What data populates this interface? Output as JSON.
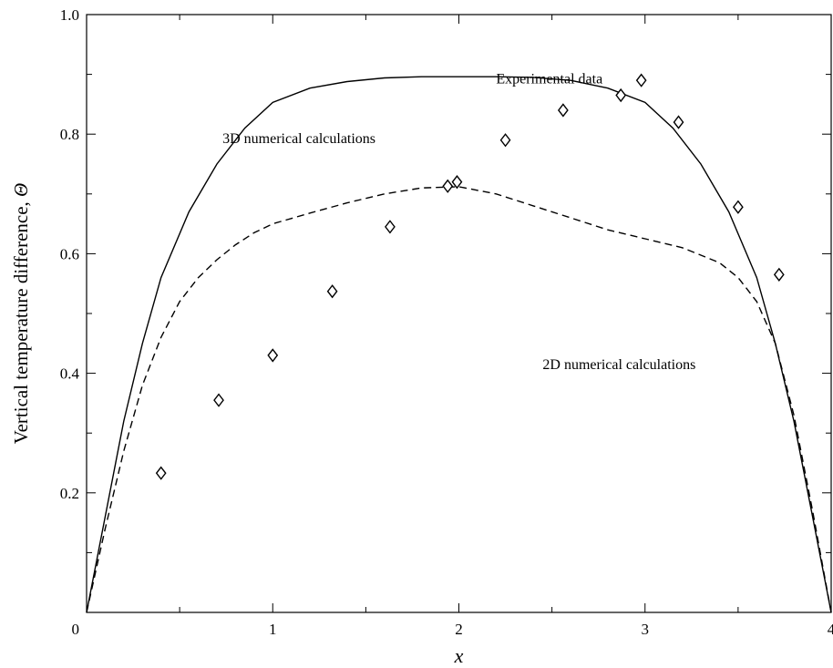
{
  "chart_data": {
    "type": "line",
    "xlabel": "x",
    "ylabel": "Vertical temperature difference, ",
    "ylabel_symbol": "Θ",
    "xlim": [
      0,
      4
    ],
    "ylim": [
      0,
      1.0
    ],
    "x_ticks": [
      0,
      1,
      2,
      3,
      4
    ],
    "x_tick_labels": [
      "0",
      "1",
      "2",
      "3",
      "4"
    ],
    "x_minor_ticks": [
      0.5,
      1.5,
      2.5,
      3.5
    ],
    "y_ticks": [
      0.2,
      0.4,
      0.6,
      0.8,
      1.0
    ],
    "y_tick_labels": [
      "0.2",
      "0.4",
      "0.6",
      "0.8",
      "1.0"
    ],
    "y_minor_ticks": [
      0.1,
      0.3,
      0.5,
      0.7,
      0.9
    ],
    "origin_label": "0",
    "grid": false,
    "series": [
      {
        "name": "3D numerical calculations",
        "style": "solid",
        "color": "#000000",
        "x": [
          0,
          0.1,
          0.2,
          0.3,
          0.4,
          0.55,
          0.7,
          0.85,
          1.0,
          1.2,
          1.4,
          1.6,
          1.8,
          2.0,
          2.2,
          2.4,
          2.6,
          2.8,
          3.0,
          3.15,
          3.3,
          3.45,
          3.6,
          3.7,
          3.8,
          3.9,
          4.0
        ],
        "y": [
          0,
          0.16,
          0.32,
          0.45,
          0.56,
          0.67,
          0.75,
          0.81,
          0.853,
          0.877,
          0.888,
          0.894,
          0.896,
          0.896,
          0.896,
          0.895,
          0.89,
          0.877,
          0.853,
          0.81,
          0.75,
          0.67,
          0.56,
          0.45,
          0.32,
          0.16,
          0
        ]
      },
      {
        "name": "2D numerical calculations",
        "style": "dashed",
        "color": "#000000",
        "x": [
          0,
          0.1,
          0.2,
          0.3,
          0.4,
          0.5,
          0.6,
          0.7,
          0.8,
          0.9,
          1.0,
          1.2,
          1.4,
          1.6,
          1.8,
          2.0,
          2.2,
          2.4,
          2.6,
          2.8,
          3.0,
          3.2,
          3.4,
          3.5,
          3.6,
          3.7,
          3.8,
          3.9,
          4.0
        ],
        "y": [
          0,
          0.14,
          0.27,
          0.38,
          0.46,
          0.52,
          0.56,
          0.59,
          0.615,
          0.635,
          0.65,
          0.668,
          0.685,
          0.7,
          0.71,
          0.712,
          0.7,
          0.68,
          0.66,
          0.64,
          0.625,
          0.61,
          0.585,
          0.56,
          0.52,
          0.45,
          0.33,
          0.17,
          0
        ]
      },
      {
        "name": "Experimental data",
        "style": "markers",
        "marker": "diamond",
        "color": "#000000",
        "x": [
          0.4,
          0.71,
          1.0,
          1.32,
          1.63,
          1.94,
          1.99,
          2.25,
          2.56,
          2.87,
          2.98,
          3.18,
          3.5,
          3.72
        ],
        "y": [
          0.233,
          0.355,
          0.43,
          0.537,
          0.645,
          0.713,
          0.72,
          0.79,
          0.84,
          0.865,
          0.89,
          0.82,
          0.678,
          0.565
        ]
      }
    ],
    "annotations": [
      {
        "text": "Experimental data",
        "x": 2.2,
        "y": 0.885
      },
      {
        "text": "3D numerical calculations",
        "x": 0.73,
        "y": 0.785
      },
      {
        "text": "2D numerical calculations",
        "x": 2.45,
        "y": 0.407
      }
    ]
  }
}
